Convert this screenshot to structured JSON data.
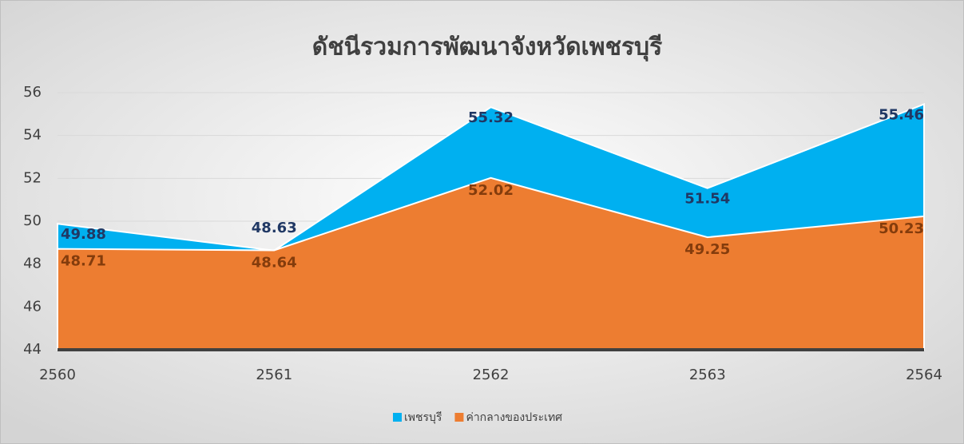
{
  "chart_data": {
    "type": "area",
    "title": "ดัชนีรวมการพัฒนาจังหวัดเพชรบุรี",
    "categories": [
      "2560",
      "2561",
      "2562",
      "2563",
      "2564"
    ],
    "series": [
      {
        "name": "เพชรบุรี",
        "color": "#00b0f0",
        "values": [
          49.88,
          48.63,
          55.32,
          51.54,
          55.46
        ]
      },
      {
        "name": "ค่ากลางของประเทศ",
        "color": "#ed7d31",
        "values": [
          48.71,
          48.64,
          52.02,
          49.25,
          50.23
        ]
      }
    ],
    "ylim": [
      44,
      56
    ],
    "yticks": [
      44,
      46,
      48,
      50,
      52,
      54,
      56
    ],
    "grid": true,
    "legend": "bottom"
  }
}
